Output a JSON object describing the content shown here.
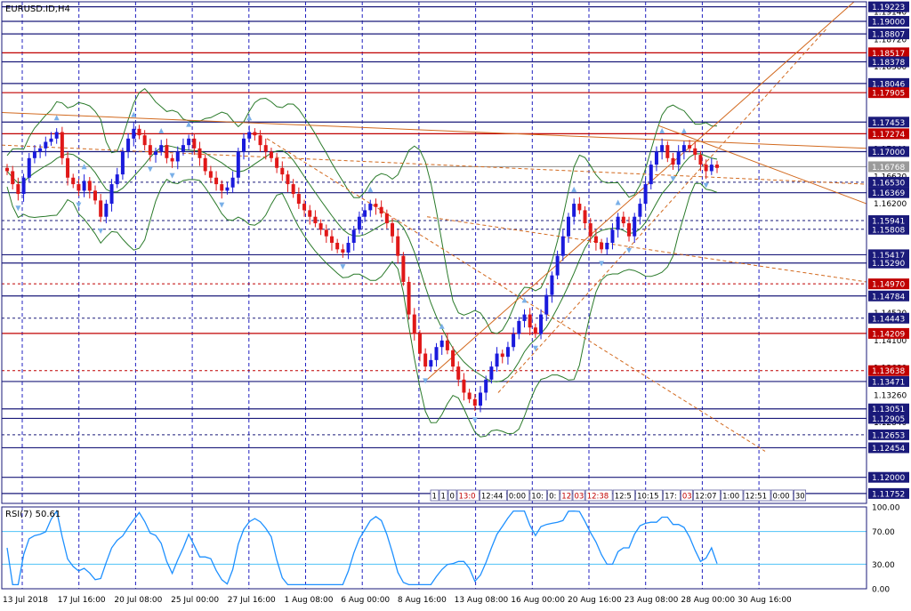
{
  "window": {
    "symbol_label": "EURUSD.ID,H4",
    "rsi_label": "RSI(7) 50.61"
  },
  "colors": {
    "bull": "#1a1adc",
    "bear": "#e01818",
    "frame": "#1a1a7a",
    "grid": "#2020c0",
    "boll": "#2a7a2a",
    "trend": "#d2691e",
    "rsi": "#1e90ff"
  },
  "chart_data": {
    "type": "candlestick",
    "symbol": "EURUSD",
    "timeframe": "H4",
    "y_range": [
      1.116,
      1.193
    ],
    "x_tick_labels": [
      "13 Jul 2018",
      "17 Jul 16:00",
      "20 Jul 08:00",
      "25 Jul 00:00",
      "27 Jul 16:00",
      "1 Aug 08:00",
      "6 Aug 00:00",
      "8 Aug 16:00",
      "13 Aug 08:00",
      "16 Aug 00:00",
      "20 Aug 16:00",
      "23 Aug 08:00",
      "28 Aug 00:00",
      "30 Aug 16:00"
    ],
    "price_scale_ticks": [
      "1.19140",
      "1.18720",
      "1.18300",
      "1.17880",
      "1.17460",
      "1.17040",
      "1.16620",
      "1.16200",
      "1.15780",
      "1.15360",
      "1.14940",
      "1.14520",
      "1.14100",
      "1.13680",
      "1.13260",
      "1.12840",
      "1.12420",
      "1.12000"
    ],
    "boxed_levels": [
      {
        "value": "1.19223",
        "style": "solid",
        "color": "frame"
      },
      {
        "value": "1.19000",
        "style": "solid",
        "color": "frame"
      },
      {
        "value": "1.18807",
        "style": "solid",
        "color": "frame"
      },
      {
        "value": "1.18517",
        "style": "solid",
        "color": "red"
      },
      {
        "value": "1.18378",
        "style": "solid",
        "color": "frame"
      },
      {
        "value": "1.18046",
        "style": "solid",
        "color": "frame"
      },
      {
        "value": "1.17905",
        "style": "solid",
        "color": "red"
      },
      {
        "value": "1.17453",
        "style": "solid",
        "color": "frame"
      },
      {
        "value": "1.17274",
        "style": "solid",
        "color": "red"
      },
      {
        "value": "1.17000",
        "style": "solid",
        "color": "frame"
      },
      {
        "value": "1.16768",
        "style": "solid",
        "color": "gray"
      },
      {
        "value": "1.16530",
        "style": "dashed",
        "color": "frame"
      },
      {
        "value": "1.16369",
        "style": "solid",
        "color": "frame"
      },
      {
        "value": "1.15941",
        "style": "dashed",
        "color": "frame"
      },
      {
        "value": "1.15808",
        "style": "dashed",
        "color": "frame"
      },
      {
        "value": "1.15417",
        "style": "solid",
        "color": "frame"
      },
      {
        "value": "1.15290",
        "style": "solid",
        "color": "frame"
      },
      {
        "value": "1.14970",
        "style": "dashed",
        "color": "red"
      },
      {
        "value": "1.14784",
        "style": "solid",
        "color": "frame"
      },
      {
        "value": "1.14443",
        "style": "dashed",
        "color": "frame"
      },
      {
        "value": "1.14209",
        "style": "solid",
        "color": "red"
      },
      {
        "value": "1.13638",
        "style": "dashed",
        "color": "red"
      },
      {
        "value": "1.13471",
        "style": "solid",
        "color": "frame"
      },
      {
        "value": "1.13051",
        "style": "solid",
        "color": "frame"
      },
      {
        "value": "1.12905",
        "style": "solid",
        "color": "frame"
      },
      {
        "value": "1.12653",
        "style": "dashed",
        "color": "frame"
      },
      {
        "value": "1.12454",
        "style": "solid",
        "color": "frame"
      },
      {
        "value": "1.12000",
        "style": "solid",
        "color": "frame"
      },
      {
        "value": "1.11752",
        "style": "solid",
        "color": "frame"
      }
    ],
    "trade_labels": [
      "1",
      "1",
      "0",
      "13:0",
      "12:44",
      "0:00",
      "10:",
      "0:",
      "12",
      "03",
      "12:38",
      "12:5",
      "10:15",
      "17:",
      "03",
      "12:07",
      "1:00",
      "12:51",
      "0:00",
      "30"
    ],
    "close_series": [
      1.167,
      1.165,
      1.1635,
      1.166,
      1.169,
      1.17,
      1.1705,
      1.1715,
      1.172,
      1.173,
      1.169,
      1.166,
      1.165,
      1.164,
      1.1655,
      1.164,
      1.1625,
      1.16,
      1.162,
      1.165,
      1.1665,
      1.17,
      1.172,
      1.1735,
      1.1725,
      1.171,
      1.1695,
      1.17,
      1.171,
      1.169,
      1.1685,
      1.17,
      1.171,
      1.172,
      1.1705,
      1.169,
      1.167,
      1.166,
      1.165,
      1.164,
      1.1645,
      1.166,
      1.17,
      1.172,
      1.173,
      1.1725,
      1.171,
      1.17,
      1.169,
      1.1675,
      1.1665,
      1.165,
      1.1635,
      1.162,
      1.161,
      1.16,
      1.159,
      1.158,
      1.157,
      1.156,
      1.155,
      1.1545,
      1.156,
      1.158,
      1.16,
      1.161,
      1.162,
      1.1615,
      1.1605,
      1.159,
      1.157,
      1.154,
      1.15,
      1.145,
      1.142,
      1.139,
      1.137,
      1.138,
      1.14,
      1.141,
      1.1395,
      1.137,
      1.135,
      1.133,
      1.132,
      1.131,
      1.133,
      1.135,
      1.137,
      1.139,
      1.1385,
      1.14,
      1.142,
      1.144,
      1.145,
      1.143,
      1.142,
      1.145,
      1.148,
      1.151,
      1.154,
      1.157,
      1.16,
      1.162,
      1.161,
      1.159,
      1.157,
      1.156,
      1.155,
      1.156,
      1.158,
      1.16,
      1.159,
      1.157,
      1.16,
      1.162,
      1.165,
      1.168,
      1.17,
      1.171,
      1.169,
      1.168,
      1.17,
      1.171,
      1.1705,
      1.1695,
      1.168,
      1.167,
      1.168,
      1.1675
    ]
  }
}
